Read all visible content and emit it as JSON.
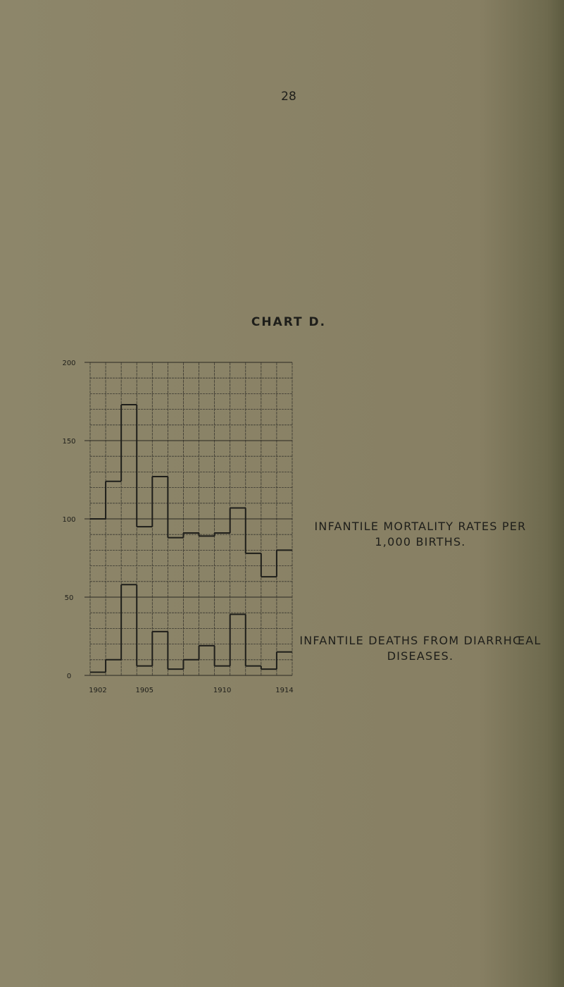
{
  "page_number": "28",
  "chart_data": {
    "type": "step",
    "title": "CHART D.",
    "categories": [
      "1902",
      null,
      null,
      "1905",
      null,
      null,
      null,
      null,
      "1910",
      null,
      null,
      null,
      "1914"
    ],
    "series": [
      {
        "name": "INFANTILE MORTALITY RATES PER 1,000 BIRTHS.",
        "color": "#1e1e1a",
        "values": [
          100,
          124,
          173,
          95,
          127,
          88,
          91,
          89,
          91,
          107,
          78,
          63,
          80
        ]
      },
      {
        "name": "INFANTILE DEATHS FROM DIARRHŒAL DISEASES.",
        "color": "#1e1e1a",
        "values": [
          2,
          10,
          58,
          6,
          28,
          4,
          10,
          19,
          6,
          39,
          6,
          4,
          15
        ]
      }
    ],
    "ylim": [
      0,
      200
    ],
    "yticks": [
      0,
      50,
      100,
      150,
      200
    ],
    "grid": true
  }
}
